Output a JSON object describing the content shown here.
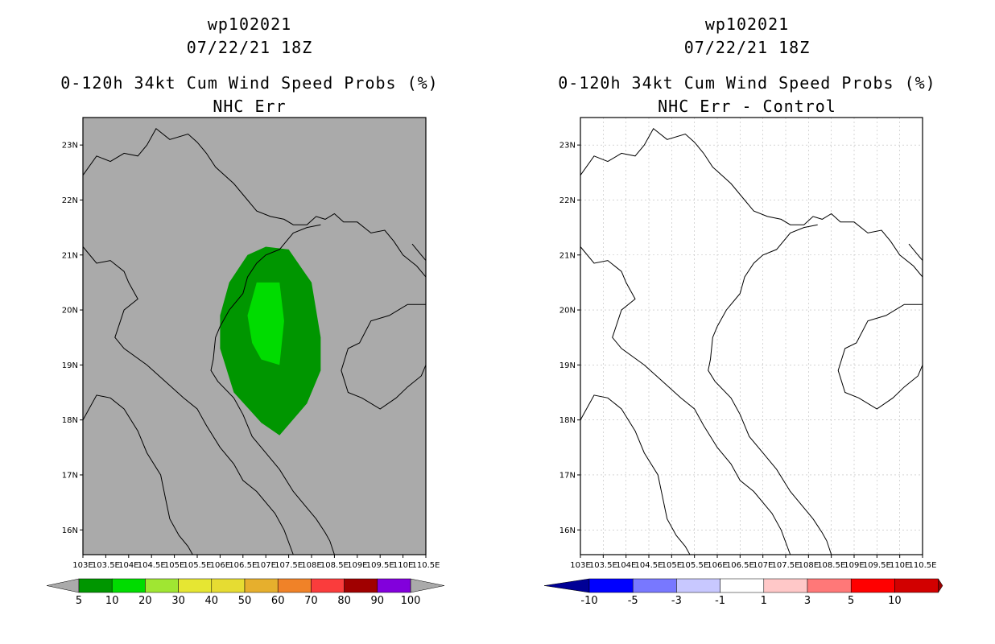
{
  "left": {
    "title_line1": "wp102021",
    "title_line2": "07/22/21 18Z",
    "title_line3": "0-120h 34kt Cum Wind Speed Probs (%)",
    "title_line4": "NHC Err",
    "background_color": "#aaaaaa",
    "colorbar": {
      "labels": [
        "5",
        "10",
        "20",
        "30",
        "40",
        "50",
        "60",
        "70",
        "80",
        "90",
        "100"
      ],
      "colors": [
        "#009600",
        "#00dc00",
        "#a0e632",
        "#e6e632",
        "#e6dc32",
        "#e6af2d",
        "#f08228",
        "#fa3c3c",
        "#a00000",
        "#8200dc"
      ]
    }
  },
  "right": {
    "title_line1": "wp102021",
    "title_line2": "07/22/21 18Z",
    "title_line3": "0-120h 34kt Cum Wind Speed Probs (%)",
    "title_line4": "NHC Err - Control",
    "background_color": "#ffffff",
    "colorbar": {
      "labels": [
        "-10",
        "-5",
        "-3",
        "-1",
        "1",
        "3",
        "5",
        "10"
      ],
      "colors": [
        "#0000d2",
        "#0000ff",
        "#7878ff",
        "#c8c8ff",
        "#ffffff",
        "#ffc8c8",
        "#ff7878",
        "#ff0000",
        "#d20000"
      ],
      "end_colors": [
        "#000096",
        "#960000"
      ]
    }
  },
  "lat_labels": [
    "23N",
    "22N",
    "21N",
    "20N",
    "19N",
    "18N",
    "17N",
    "16N"
  ],
  "lon_labels": [
    "103E",
    "103.5E",
    "104E",
    "104.5E",
    "105E",
    "105.5E",
    "106E",
    "106.5E",
    "107E",
    "107.5E",
    "108E",
    "108.5E",
    "109E",
    "109.5E",
    "110E",
    "110.5E"
  ],
  "map_extent": {
    "lon": [
      103,
      110.5
    ],
    "lat": [
      15.55,
      23.5
    ]
  },
  "prob_contours": [
    {
      "level": "5-10",
      "color": "#009600",
      "outline": [
        [
          107.0,
          21.15
        ],
        [
          106.6,
          21.0
        ],
        [
          106.2,
          20.5
        ],
        [
          106.0,
          19.9
        ],
        [
          106.0,
          19.3
        ],
        [
          106.3,
          18.5
        ],
        [
          106.9,
          17.95
        ],
        [
          107.3,
          17.72
        ],
        [
          107.9,
          18.3
        ],
        [
          108.2,
          18.9
        ],
        [
          108.2,
          19.5
        ],
        [
          108.0,
          20.5
        ],
        [
          107.5,
          21.1
        ]
      ]
    },
    {
      "level": "10-20",
      "color": "#00dc00",
      "outline": [
        [
          106.8,
          20.5
        ],
        [
          107.3,
          20.5
        ],
        [
          107.4,
          19.8
        ],
        [
          107.3,
          19.0
        ],
        [
          106.9,
          19.1
        ],
        [
          106.7,
          19.4
        ],
        [
          106.6,
          19.9
        ]
      ]
    }
  ]
}
